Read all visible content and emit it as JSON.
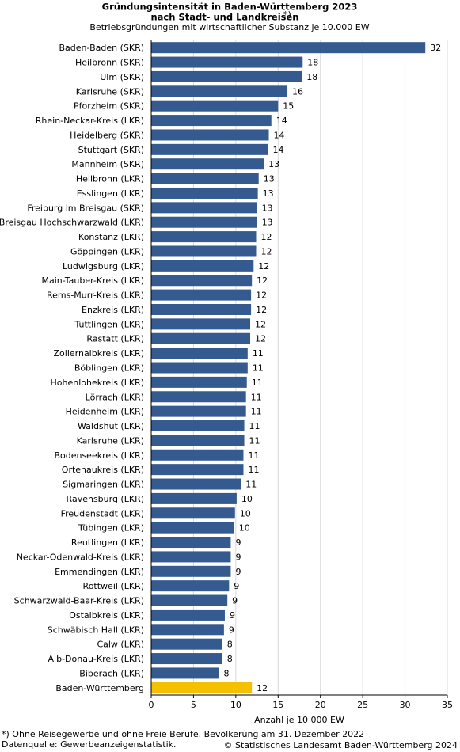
{
  "chart_data": {
    "type": "barh",
    "title": [
      "Gründungsintensität in Baden-Württemberg 2023",
      "nach Stadt- und Landkreisen"
    ],
    "title_note": "*)",
    "subtitle": "Betriebsgründungen mit wirtschaftlicher Substanz je 10.000 EW",
    "categories": [
      "Baden-Baden (SKR)",
      "Heilbronn (SKR)",
      "Ulm (SKR)",
      "Karlsruhe (SKR)",
      "Pforzheim (SKR)",
      "Rhein-Neckar-Kreis (LKR)",
      "Heidelberg (SKR)",
      "Stuttgart (SKR)",
      "Mannheim (SKR)",
      "Heilbronn (LKR)",
      "Esslingen (LKR)",
      "Freiburg im Breisgau (SKR)",
      "Breisgau Hochschwarzwald (LKR)",
      "Konstanz (LKR)",
      "Göppingen (LKR)",
      "Ludwigsburg (LKR)",
      "Main-Tauber-Kreis (LKR)",
      "Rems-Murr-Kreis (LKR)",
      "Enzkreis (LKR)",
      "Tuttlingen (LKR)",
      "Rastatt (LKR)",
      "Zollernalbkreis (LKR)",
      "Böblingen (LKR)",
      "Hohenlohekreis (LKR)",
      "Lörrach (LKR)",
      "Heidenheim (LKR)",
      "Waldshut (LKR)",
      "Karlsruhe (LKR)",
      "Bodenseekreis (LKR)",
      "Ortenaukreis (LKR)",
      "Sigmaringen (LKR)",
      "Ravensburg (LKR)",
      "Freudenstadt (LKR)",
      "Tübingen (LKR)",
      "Reutlingen (LKR)",
      "Neckar-Odenwald-Kreis (LKR)",
      "Emmendingen (LKR)",
      "Rottweil (LKR)",
      "Schwarzwald-Baar-Kreis (LKR)",
      "Ostalbkreis (LKR)",
      "Schwäbisch Hall (LKR)",
      "Calw (LKR)",
      "Alb-Donau-Kreis (LKR)",
      "Biberach (LKR)",
      "Baden-Württemberg"
    ],
    "values": [
      32.4,
      17.9,
      17.8,
      16.1,
      15.0,
      14.2,
      13.9,
      13.8,
      13.3,
      12.7,
      12.6,
      12.5,
      12.5,
      12.4,
      12.4,
      12.1,
      11.9,
      11.8,
      11.8,
      11.7,
      11.7,
      11.4,
      11.4,
      11.3,
      11.2,
      11.2,
      11.0,
      11.0,
      10.9,
      10.9,
      10.6,
      10.1,
      9.9,
      9.8,
      9.4,
      9.4,
      9.4,
      9.2,
      9.0,
      8.7,
      8.6,
      8.4,
      8.4,
      8.0,
      11.9
    ],
    "value_labels": [
      "32",
      "18",
      "18",
      "16",
      "15",
      "14",
      "14",
      "14",
      "13",
      "13",
      "13",
      "13",
      "13",
      "12",
      "12",
      "12",
      "12",
      "12",
      "12",
      "12",
      "12",
      "11",
      "11",
      "11",
      "11",
      "11",
      "11",
      "11",
      "11",
      "11",
      "11",
      "10",
      "10",
      "10",
      "9",
      "9",
      "9",
      "9",
      "9",
      "9",
      "9",
      "8",
      "8",
      "8",
      "12"
    ],
    "colors": [
      "#355a90",
      "#355a90",
      "#355a90",
      "#355a90",
      "#355a90",
      "#355a90",
      "#355a90",
      "#355a90",
      "#355a90",
      "#355a90",
      "#355a90",
      "#355a90",
      "#355a90",
      "#355a90",
      "#355a90",
      "#355a90",
      "#355a90",
      "#355a90",
      "#355a90",
      "#355a90",
      "#355a90",
      "#355a90",
      "#355a90",
      "#355a90",
      "#355a90",
      "#355a90",
      "#355a90",
      "#355a90",
      "#355a90",
      "#355a90",
      "#355a90",
      "#355a90",
      "#355a90",
      "#355a90",
      "#355a90",
      "#355a90",
      "#355a90",
      "#355a90",
      "#355a90",
      "#355a90",
      "#355a90",
      "#355a90",
      "#355a90",
      "#355a90",
      "#f5c000"
    ],
    "xlim": [
      0,
      35
    ],
    "xticks": [
      0,
      5,
      10,
      15,
      20,
      25,
      30,
      35
    ],
    "grid": true,
    "x_label": "Anzahl je 10 000 EW",
    "footnote": "*) Ohne Reisegewerbe und ohne Freie Berufe. Bevölkerung am 31. Dezember 2022",
    "source": "Datenquelle: Gewerbeanzeigenstatistik.",
    "copyright": "© Statistisches Landesamt Baden-Württemberg 2024"
  }
}
